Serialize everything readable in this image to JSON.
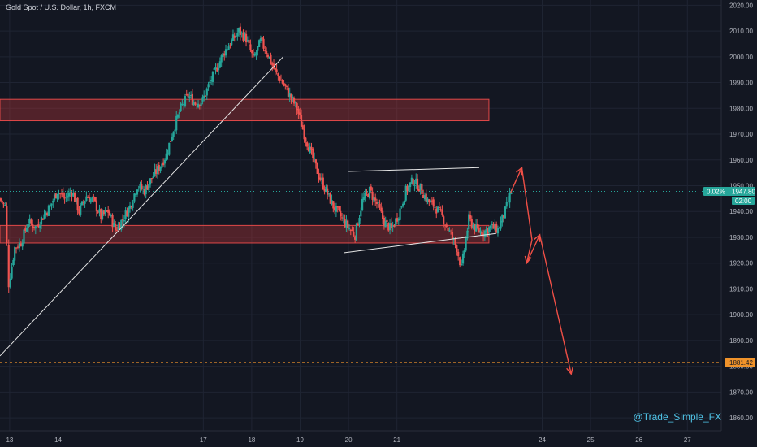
{
  "symbol": {
    "title": "Gold Spot / U.S. Dollar, 1h, FXCM"
  },
  "watermark": "@Trade_Simple_FX",
  "colors": {
    "background": "#131722",
    "up": "#26a69a",
    "down": "#ef5350",
    "zone_fill": "rgba(214,60,60,0.32)",
    "zone_stroke": "#e04848",
    "trendline": "#e6e6e6",
    "projection": "#ef4f46",
    "target": "#f0932b",
    "price_badge": "#26a69a",
    "text": "#b2b5be"
  },
  "price_badge": {
    "change": "0.02%",
    "price": "1947.80",
    "countdown": "02:00"
  },
  "target": {
    "label": "1881.42",
    "price": 1881.42
  },
  "chart_data": {
    "type": "candlestick",
    "title": "Gold Spot / U.S. Dollar, 1h, FXCM",
    "ylim": [
      1855,
      2022
    ],
    "yticks": [
      2020,
      2010,
      2000,
      1990,
      1980,
      1970,
      1960,
      1950,
      1940,
      1930,
      1920,
      1910,
      1900,
      1890,
      1880,
      1870,
      1860
    ],
    "ytick_labels": [
      "2020.00",
      "2010.00",
      "2000.00",
      "1990.00",
      "1980.00",
      "1970.00",
      "1960.00",
      "1950.00",
      "1940.00",
      "1930.00",
      "1920.00",
      "1910.00",
      "1900.00",
      "1890.00",
      "1880.00",
      "1870.00",
      "1860.00"
    ],
    "xlim": [
      12.8,
      27.7
    ],
    "xticks": [
      13,
      14,
      17,
      18,
      19,
      20,
      21,
      24,
      25,
      26,
      27
    ],
    "xtick_labels": [
      "13",
      "14",
      "17",
      "18",
      "19",
      "20",
      "21",
      "24",
      "25",
      "26",
      "27"
    ],
    "price_path": [
      [
        12.8,
        1945
      ],
      [
        12.92,
        1942
      ],
      [
        13.0,
        1912
      ],
      [
        13.12,
        1926
      ],
      [
        13.25,
        1928
      ],
      [
        13.4,
        1936
      ],
      [
        13.55,
        1934
      ],
      [
        13.7,
        1938
      ],
      [
        13.85,
        1942
      ],
      [
        14.0,
        1948
      ],
      [
        14.15,
        1945
      ],
      [
        14.3,
        1948
      ],
      [
        14.45,
        1940
      ],
      [
        14.6,
        1946
      ],
      [
        14.75,
        1944
      ],
      [
        14.9,
        1938
      ],
      [
        15.05,
        1940
      ],
      [
        15.2,
        1933
      ],
      [
        15.35,
        1937
      ],
      [
        15.5,
        1942
      ],
      [
        15.65,
        1950
      ],
      [
        15.8,
        1948
      ],
      [
        15.95,
        1953
      ],
      [
        16.1,
        1957
      ],
      [
        16.25,
        1962
      ],
      [
        16.4,
        1972
      ],
      [
        16.55,
        1980
      ],
      [
        16.7,
        1985
      ],
      [
        16.85,
        1982
      ],
      [
        17.0,
        1983
      ],
      [
        17.15,
        1990
      ],
      [
        17.3,
        1996
      ],
      [
        17.45,
        2002
      ],
      [
        17.6,
        2006
      ],
      [
        17.75,
        2010
      ],
      [
        17.9,
        2007
      ],
      [
        18.05,
        1999
      ],
      [
        18.2,
        2006
      ],
      [
        18.35,
        2001
      ],
      [
        18.5,
        1994
      ],
      [
        18.65,
        1990
      ],
      [
        18.8,
        1985
      ],
      [
        18.95,
        1980
      ],
      [
        19.1,
        1970
      ],
      [
        19.25,
        1962
      ],
      [
        19.4,
        1954
      ],
      [
        19.55,
        1948
      ],
      [
        19.7,
        1942
      ],
      [
        19.85,
        1938
      ],
      [
        20.0,
        1934
      ],
      [
        20.15,
        1931
      ],
      [
        20.3,
        1944
      ],
      [
        20.45,
        1948
      ],
      [
        20.6,
        1943
      ],
      [
        20.75,
        1936
      ],
      [
        20.9,
        1933
      ],
      [
        21.05,
        1939
      ],
      [
        21.2,
        1948
      ],
      [
        21.35,
        1952
      ],
      [
        21.5,
        1949
      ],
      [
        21.65,
        1944
      ],
      [
        21.8,
        1942
      ],
      [
        21.95,
        1938
      ],
      [
        22.1,
        1932
      ],
      [
        22.25,
        1926
      ],
      [
        22.35,
        1918
      ],
      [
        22.5,
        1937
      ],
      [
        22.65,
        1933
      ],
      [
        22.8,
        1932
      ],
      [
        22.95,
        1934
      ],
      [
        23.1,
        1933
      ],
      [
        23.25,
        1940
      ],
      [
        23.38,
        1947.8
      ]
    ],
    "zones": [
      {
        "from_x": 12.8,
        "to_x": 22.9,
        "low": 1975.2,
        "high": 1983.5
      },
      {
        "from_x": 12.8,
        "to_x": 22.9,
        "low": 1927.8,
        "high": 1934.6
      }
    ],
    "trendlines": [
      {
        "x1": 12.8,
        "y1": 1884,
        "x2": 18.65,
        "y2": 2000
      },
      {
        "x1": 20.0,
        "y1": 1955.5,
        "x2": 22.7,
        "y2": 1957
      },
      {
        "x1": 19.9,
        "y1": 1924,
        "x2": 23.05,
        "y2": 1931.5
      }
    ],
    "projection_path": [
      [
        23.34,
        1947.0
      ],
      [
        23.58,
        1957.0
      ],
      [
        23.79,
        1929.0
      ],
      [
        23.68,
        1920.0
      ],
      [
        23.95,
        1931.0
      ],
      [
        24.6,
        1877.0
      ]
    ],
    "current_price": 1947.8,
    "target_price": 1881.42
  }
}
